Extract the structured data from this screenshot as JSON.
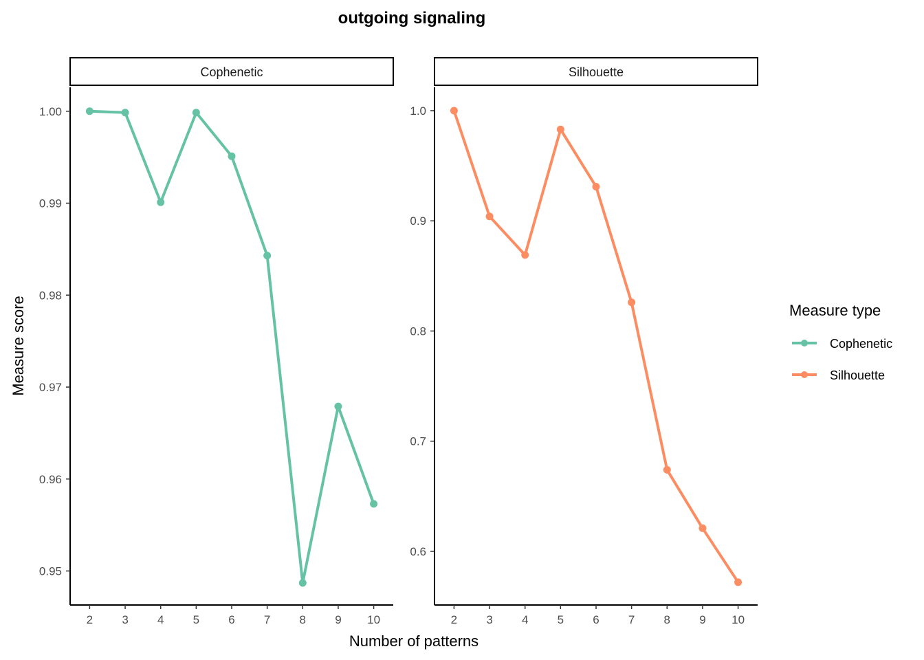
{
  "title": "outgoing signaling",
  "xlabel": "Number of patterns",
  "ylabel": "Measure score",
  "legend": {
    "title": "Measure type",
    "items": [
      {
        "label": "Cophenetic",
        "color": "#66C2A5"
      },
      {
        "label": "Silhouette",
        "color": "#FC8D62"
      }
    ]
  },
  "chart_data": [
    {
      "type": "line",
      "panel": "Cophenetic",
      "color": "#66C2A5",
      "x": [
        2,
        3,
        4,
        5,
        6,
        7,
        8,
        9,
        10
      ],
      "y": [
        1.0,
        0.99985,
        0.9901,
        0.99985,
        0.9951,
        0.9843,
        0.9487,
        0.9679,
        0.9573
      ],
      "xlim": [
        1.45,
        10.55
      ],
      "ylim": [
        0.9463,
        1.0026
      ],
      "yticks": [
        0.95,
        0.96,
        0.97,
        0.98,
        0.99,
        1.0
      ],
      "ytick_labels": [
        "0.95",
        "0.96",
        "0.97",
        "0.98",
        "0.99",
        "1.00"
      ],
      "xticks": [
        2,
        3,
        4,
        5,
        6,
        7,
        8,
        9,
        10
      ],
      "xtick_labels": [
        "2",
        "3",
        "4",
        "5",
        "6",
        "7",
        "8",
        "9",
        "10"
      ],
      "grid": false
    },
    {
      "type": "line",
      "panel": "Silhouette",
      "color": "#FC8D62",
      "x": [
        2,
        3,
        4,
        5,
        6,
        7,
        8,
        9,
        10
      ],
      "y": [
        1.0,
        0.904,
        0.869,
        0.983,
        0.931,
        0.826,
        0.674,
        0.621,
        0.572
      ],
      "xlim": [
        1.45,
        10.55
      ],
      "ylim": [
        0.5513,
        1.0212
      ],
      "yticks": [
        0.6,
        0.7,
        0.8,
        0.9,
        1.0
      ],
      "ytick_labels": [
        "0.6",
        "0.7",
        "0.8",
        "0.9",
        "1.0"
      ],
      "xticks": [
        2,
        3,
        4,
        5,
        6,
        7,
        8,
        9,
        10
      ],
      "xtick_labels": [
        "2",
        "3",
        "4",
        "5",
        "6",
        "7",
        "8",
        "9",
        "10"
      ],
      "grid": false
    }
  ]
}
